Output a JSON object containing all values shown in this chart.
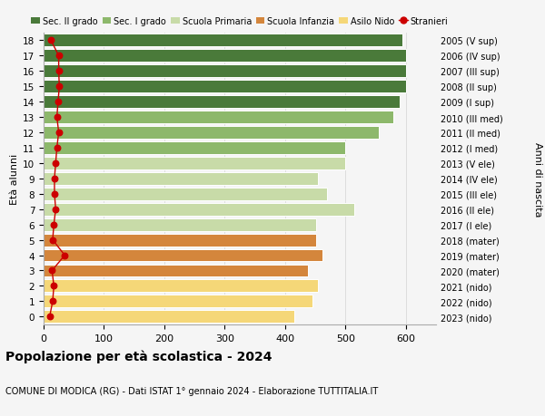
{
  "ages": [
    0,
    1,
    2,
    3,
    4,
    5,
    6,
    7,
    8,
    9,
    10,
    11,
    12,
    13,
    14,
    15,
    16,
    17,
    18
  ],
  "bar_values": [
    415,
    445,
    455,
    438,
    462,
    452,
    452,
    515,
    470,
    455,
    500,
    500,
    555,
    580,
    590,
    600,
    600,
    600,
    595
  ],
  "bar_colors": [
    "#f5d778",
    "#f5d778",
    "#f5d778",
    "#d4863c",
    "#d4863c",
    "#d4863c",
    "#c8dba8",
    "#c8dba8",
    "#c8dba8",
    "#c8dba8",
    "#c8dba8",
    "#8db86b",
    "#8db86b",
    "#8db86b",
    "#4a7a3a",
    "#4a7a3a",
    "#4a7a3a",
    "#4a7a3a",
    "#4a7a3a"
  ],
  "right_labels": [
    "2023 (nido)",
    "2022 (nido)",
    "2021 (nido)",
    "2020 (mater)",
    "2019 (mater)",
    "2018 (mater)",
    "2017 (I ele)",
    "2016 (II ele)",
    "2015 (III ele)",
    "2014 (IV ele)",
    "2013 (V ele)",
    "2012 (I med)",
    "2011 (II med)",
    "2010 (III med)",
    "2009 (I sup)",
    "2008 (II sup)",
    "2007 (III sup)",
    "2006 (IV sup)",
    "2005 (V sup)"
  ],
  "stranieri_values": [
    10,
    15,
    17,
    14,
    35,
    15,
    17,
    20,
    18,
    18,
    20,
    22,
    25,
    22,
    24,
    26,
    25,
    25,
    12
  ],
  "legend_labels": [
    "Sec. II grado",
    "Sec. I grado",
    "Scuola Primaria",
    "Scuola Infanzia",
    "Asilo Nido",
    "Stranieri"
  ],
  "legend_colors": [
    "#4a7a3a",
    "#8db86b",
    "#c8dba8",
    "#d4863c",
    "#f5d778",
    "#cc0000"
  ],
  "title": "Popolazione per età scolastica - 2024",
  "subtitle": "COMUNE DI MODICA (RG) - Dati ISTAT 1° gennaio 2024 - Elaborazione TUTTITALIA.IT",
  "ylabel_left": "Età alunni",
  "ylabel_right": "Anni di nascita",
  "xlim": [
    0,
    650
  ],
  "xticks": [
    0,
    100,
    200,
    300,
    400,
    500,
    600
  ],
  "bg_color": "#f5f5f5",
  "grid_color": "#dddddd"
}
